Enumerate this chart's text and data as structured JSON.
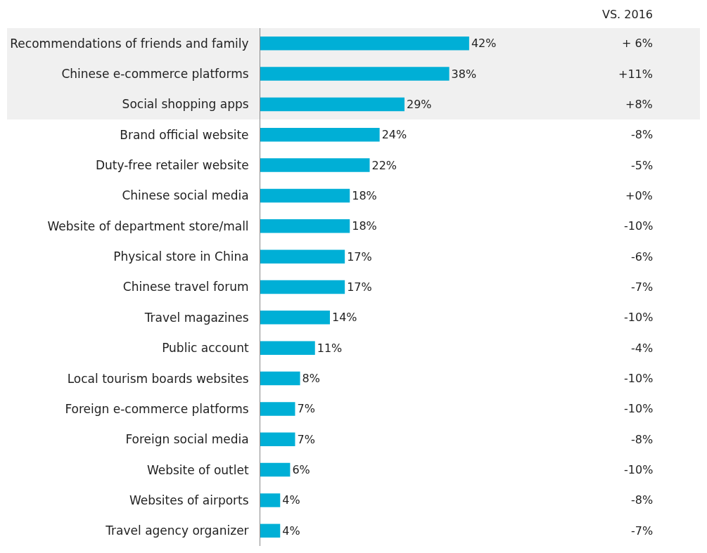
{
  "chart_data": {
    "type": "bar",
    "orientation": "horizontal",
    "categories": [
      "Recommendations of friends and family",
      "Chinese e-commerce platforms",
      "Social shopping apps",
      "Brand official website",
      "Duty-free retailer website",
      "Chinese social media",
      "Website of department store/mall",
      "Physical store in China",
      "Chinese travel forum",
      "Travel magazines",
      "Public account",
      "Local tourism boards websites",
      "Foreign e-commerce platforms",
      "Foreign social media",
      "Website of outlet",
      "Websites of airports",
      "Travel agency organizer"
    ],
    "values": [
      42,
      38,
      29,
      24,
      22,
      18,
      18,
      17,
      17,
      14,
      11,
      8,
      7,
      7,
      6,
      4,
      4
    ],
    "value_labels": [
      "42%",
      "38%",
      "29%",
      "24%",
      "22%",
      "18%",
      "18%",
      "17%",
      "17%",
      "14%",
      "11%",
      "8%",
      "7%",
      "7%",
      "6%",
      "4%",
      "4%"
    ],
    "color": "#00afd6",
    "bands": [
      {
        "axis": "y",
        "from": "Recommendations of friends and family",
        "to": "Social shopping apps",
        "color": "#f0f0f0"
      }
    ],
    "annotations": [
      "VS. 2016",
      "+ 6%",
      "+11%",
      "+8%",
      "-8%",
      "-5%",
      "+0%",
      "-10%",
      "-6%",
      "-7%",
      "-10%",
      "-4%",
      "-10%",
      "-10%",
      "-8%",
      "-10%",
      "-8%",
      "-7%"
    ],
    "grid": false,
    "legend": false,
    "tick_labels": "y"
  }
}
